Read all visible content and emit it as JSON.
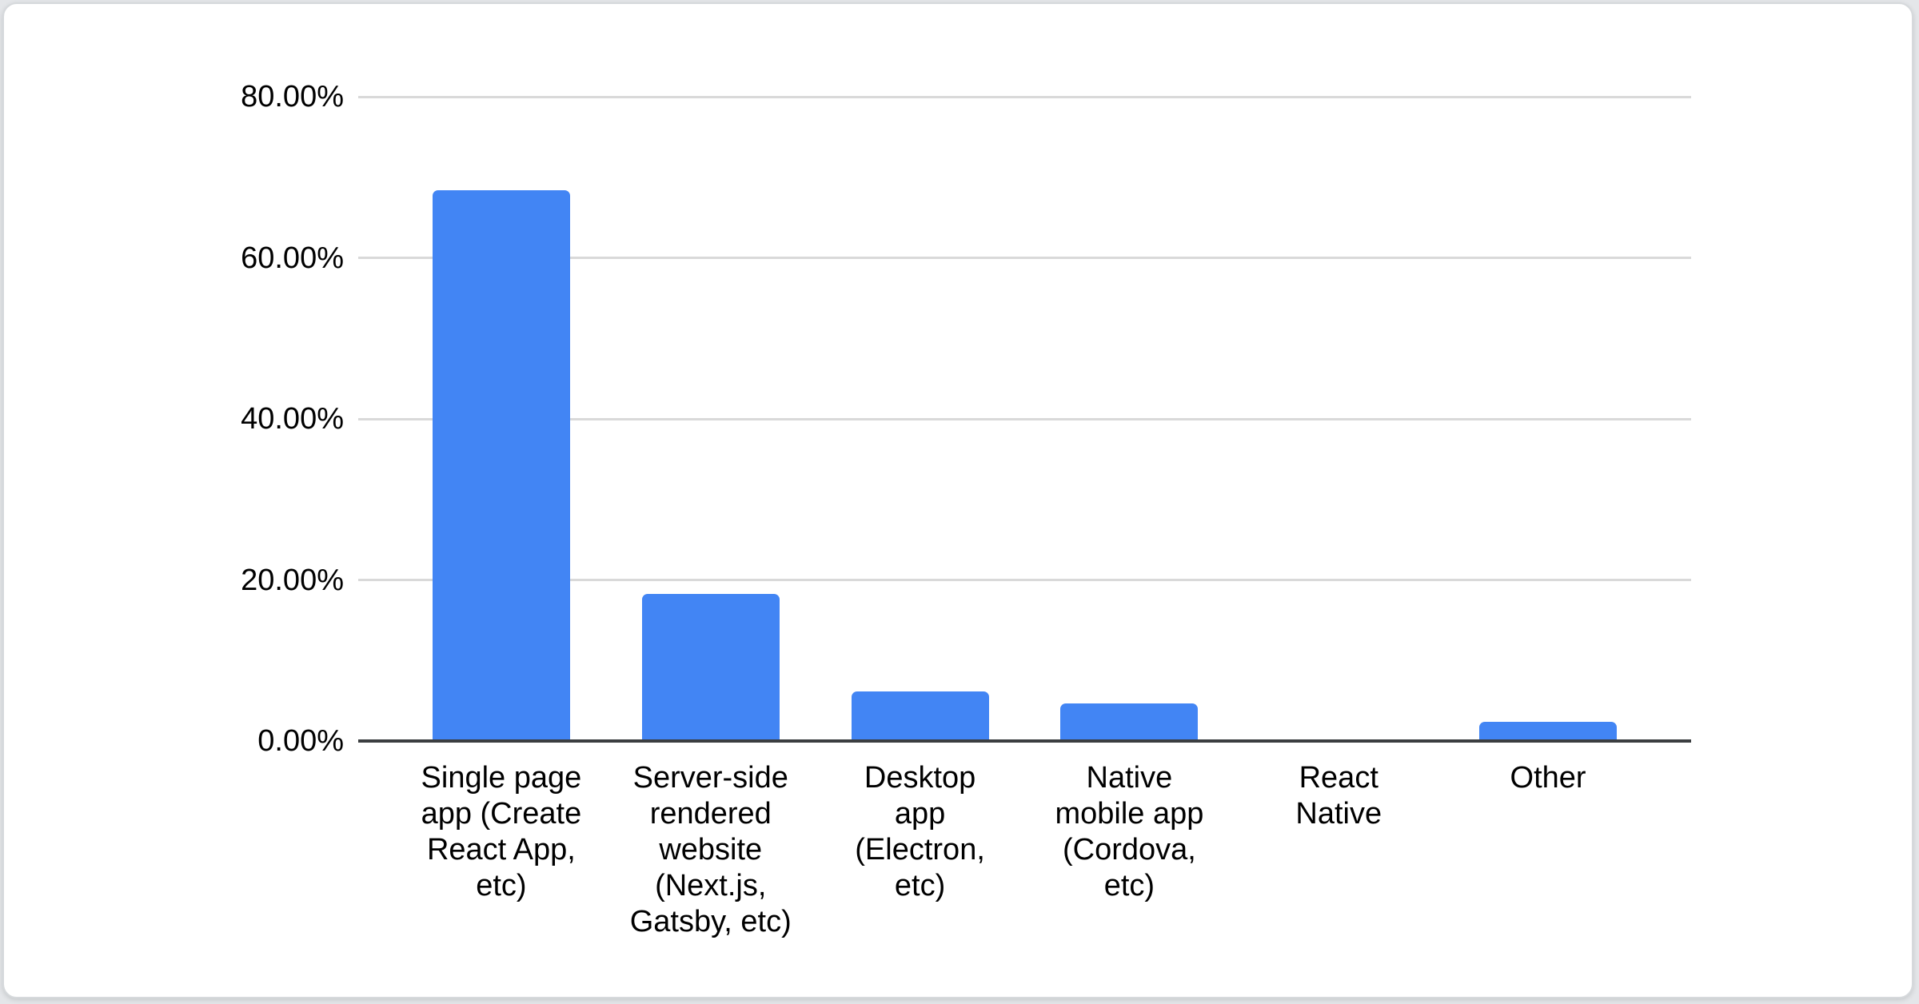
{
  "chart_data": {
    "type": "bar",
    "categories": [
      "Single page app (Create React App, etc)",
      "Server-side rendered website (Next.js, Gatsby, etc)",
      "Desktop app (Electron, etc)",
      "Native mobile app (Cordova, etc)",
      "React Native",
      "Other"
    ],
    "category_labels_wrapped": [
      "Single page\napp (Create\nReact App,\netc)",
      "Server-side\nrendered\nwebsite\n(Next.js,\nGatsby, etc)",
      "Desktop\napp\n(Electron,\netc)",
      "Native\nmobile app\n(Cordova,\netc)",
      "React\nNative",
      "Other"
    ],
    "values": [
      68.4,
      18.3,
      6.2,
      4.7,
      0,
      2.4
    ],
    "value_unit": "%",
    "y_tick_labels": [
      "0.00%",
      "20.00%",
      "40.00%",
      "60.00%",
      "80.00%"
    ],
    "ylim": [
      0,
      80
    ],
    "title": "",
    "xlabel": "",
    "ylabel": "",
    "legend": "none",
    "grid": "horizontal",
    "bar_color": "#4285f4"
  },
  "colors": {
    "bar": "#4285f4",
    "gridline": "#d9d9d9",
    "axis_line": "#3b3e40",
    "label_text": "#000000",
    "card_background": "#ffffff",
    "card_border": "#d6d9dc",
    "page_background": "#e4e6e9"
  }
}
